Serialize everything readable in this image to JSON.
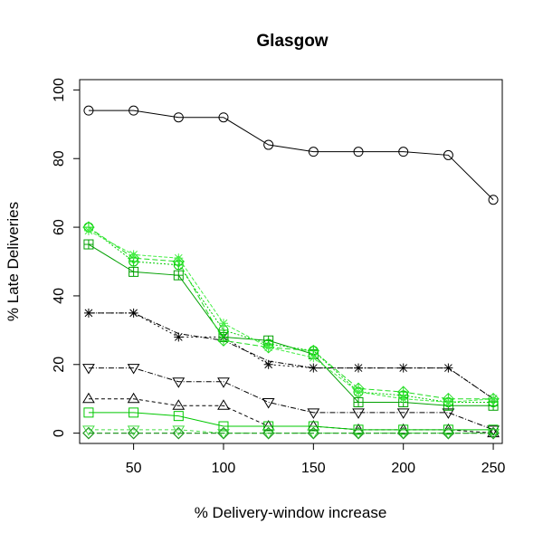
{
  "chart_data": {
    "type": "line",
    "title": "Glasgow",
    "xlabel": "% Delivery-window increase",
    "ylabel": "% Late Deliveries",
    "x": [
      25,
      50,
      75,
      100,
      125,
      150,
      175,
      200,
      225,
      250
    ],
    "xlim": [
      20,
      255
    ],
    "ylim": [
      -3,
      103
    ],
    "xticks": [
      50,
      100,
      150,
      200,
      250
    ],
    "yticks": [
      0,
      20,
      40,
      60,
      80,
      100
    ],
    "grid": false,
    "series": [
      {
        "name": "circle",
        "color": "#000000",
        "dash": "",
        "marker": "circle",
        "values": [
          94,
          94,
          92,
          92,
          84,
          82,
          82,
          82,
          81,
          68
        ]
      },
      {
        "name": "star",
        "color": "#000000",
        "dash": "2,3",
        "marker": "star",
        "values": [
          35,
          35,
          28,
          28,
          20,
          19,
          19,
          19,
          19,
          10
        ]
      },
      {
        "name": "star-2",
        "color": "#000000",
        "dash": "6,2,1,2",
        "marker": "none",
        "values": [
          35,
          35,
          29,
          27,
          21,
          19,
          19,
          19,
          19,
          10
        ]
      },
      {
        "name": "triangle-down",
        "color": "#000000",
        "dash": "6,2,1,2",
        "marker": "triangle-down",
        "values": [
          19,
          19,
          15,
          15,
          9,
          6,
          6,
          6,
          6,
          1
        ]
      },
      {
        "name": "triangle-up",
        "color": "#000000",
        "dash": "4,3",
        "marker": "triangle-up",
        "values": [
          10,
          10,
          8,
          8,
          2,
          2,
          1,
          1,
          1,
          0
        ]
      },
      {
        "name": "diamond-black",
        "color": "#000000",
        "dash": "6,3",
        "marker": "diamond",
        "values": [
          0,
          0,
          0,
          0,
          0,
          0,
          0,
          0,
          0,
          0
        ]
      },
      {
        "name": "squares-x",
        "color": "#00a000",
        "dash": "",
        "marker": "square-cross",
        "values": [
          55,
          47,
          46,
          28,
          27,
          23,
          9,
          9,
          8,
          8
        ]
      },
      {
        "name": "circle-plus",
        "color": "#00cc00",
        "dash": "2,2",
        "marker": "circle-plus",
        "values": [
          60,
          50,
          49,
          30,
          26,
          24,
          12,
          11,
          9,
          9
        ]
      },
      {
        "name": "diamond-plus",
        "color": "#22dd22",
        "dash": "6,3",
        "marker": "diamond-plus",
        "values": [
          60,
          51,
          50,
          27,
          25,
          24,
          13,
          12,
          10,
          10
        ]
      },
      {
        "name": "star-green",
        "color": "#44ee44",
        "dash": "4,2",
        "marker": "star",
        "values": [
          59,
          52,
          51,
          32,
          25,
          22,
          12,
          10,
          9,
          10
        ]
      },
      {
        "name": "square-green",
        "color": "#00c800",
        "dash": "",
        "marker": "square",
        "values": [
          6,
          6,
          5,
          2,
          2,
          2,
          1,
          1,
          1,
          1
        ]
      },
      {
        "name": "triangle-green",
        "color": "#44dd44",
        "dash": "4,3",
        "marker": "triangle-down",
        "values": [
          1,
          1,
          1,
          0,
          0,
          0,
          0,
          0,
          0,
          0
        ]
      },
      {
        "name": "diamond-green",
        "color": "#22aa22",
        "dash": "6,3",
        "marker": "diamond",
        "values": [
          0,
          0,
          0,
          0,
          0,
          0,
          0,
          0,
          0,
          0
        ]
      }
    ]
  }
}
